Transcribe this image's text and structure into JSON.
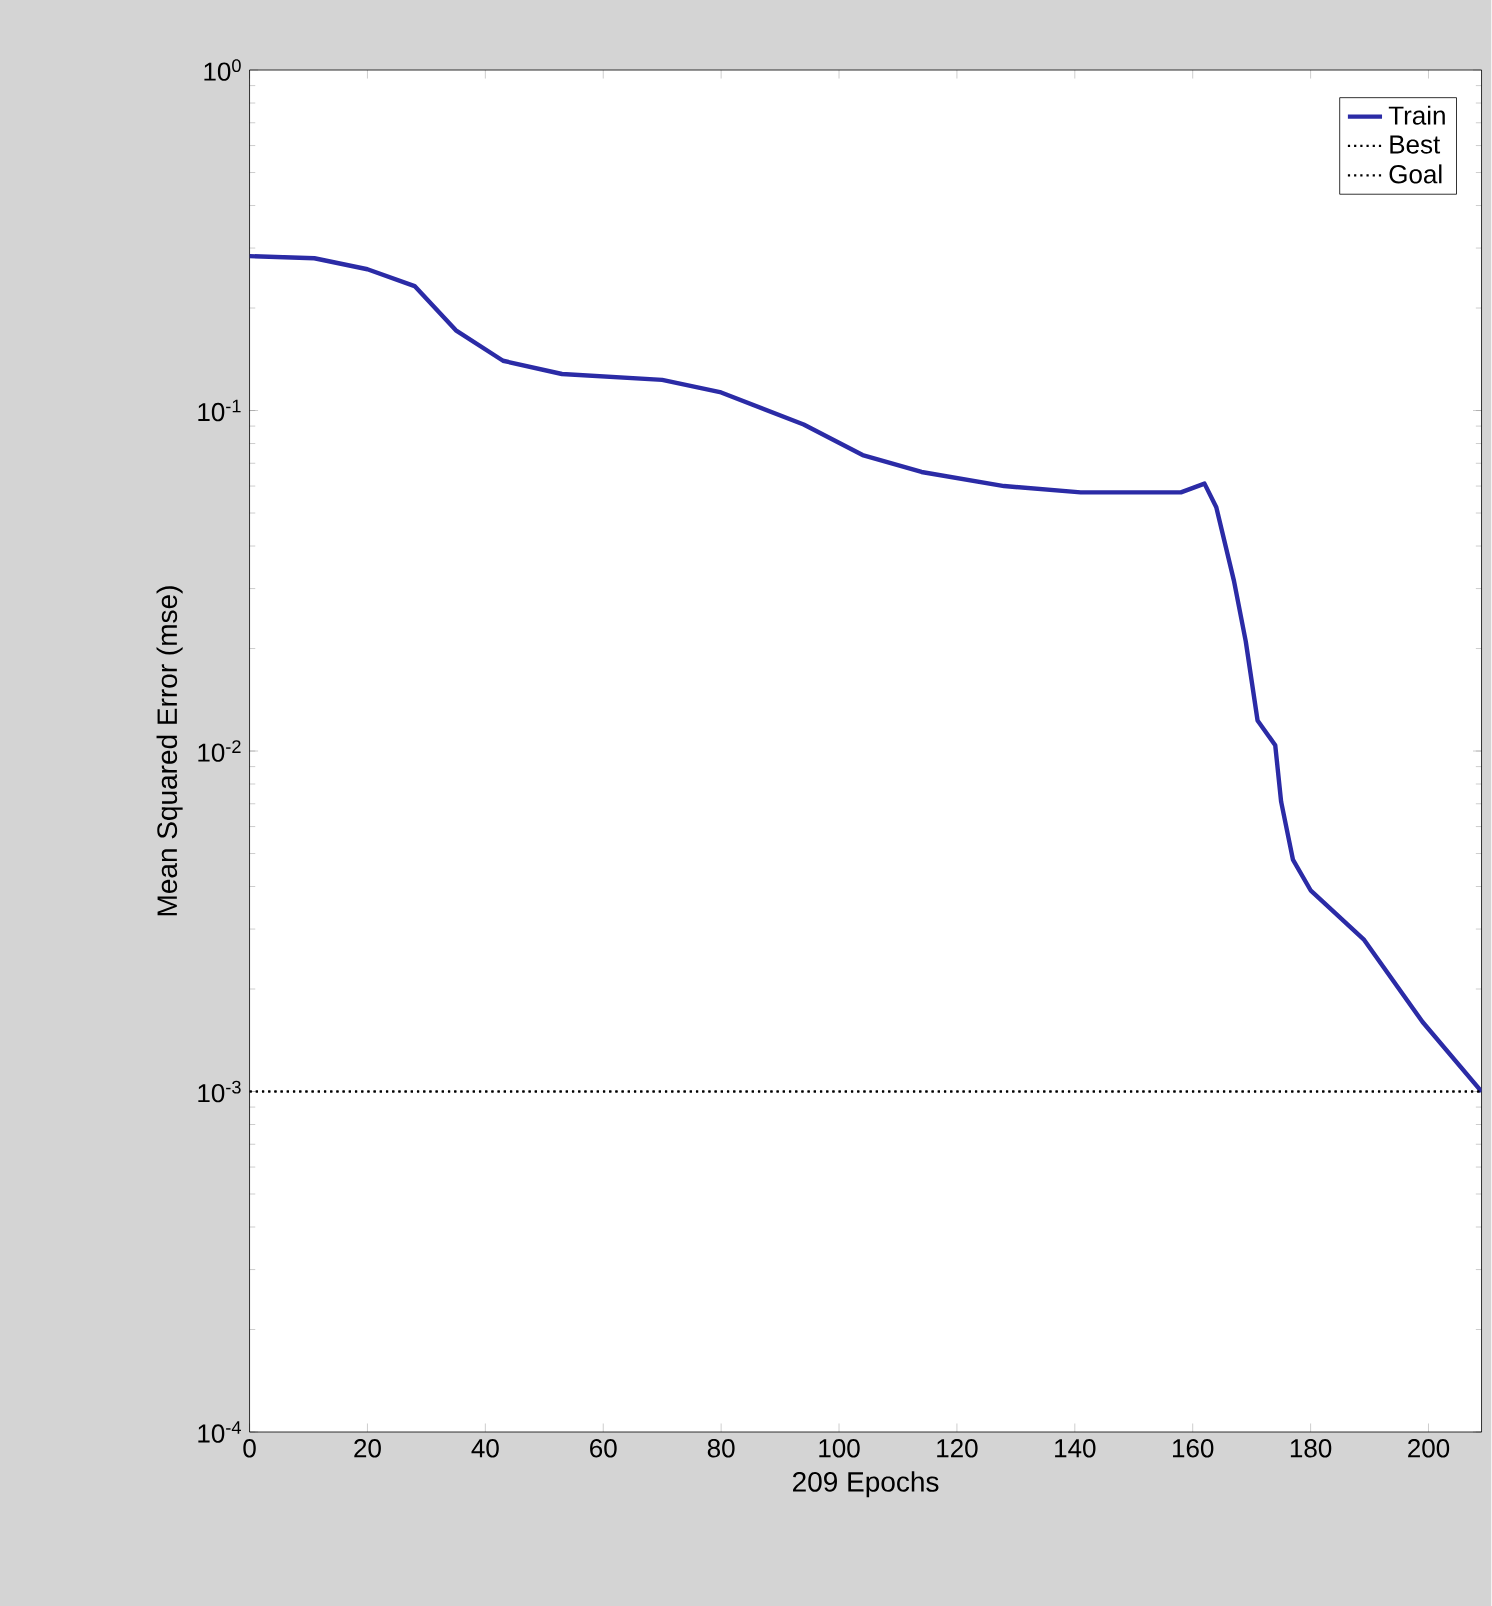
{
  "chart_data": {
    "type": "line",
    "xlabel": "209 Epochs",
    "ylabel": "Mean Squared Error  (mse)",
    "xlim": [
      0,
      209
    ],
    "ylim": [
      0.0001,
      1
    ],
    "log": "y",
    "legend": "top right",
    "grid": false,
    "xticks": [
      0,
      20,
      40,
      60,
      80,
      100,
      120,
      140,
      160,
      180,
      200
    ],
    "yticks": [
      {
        "value": 0.0001,
        "label": "10$^{-4}$"
      },
      {
        "value": 0.001,
        "label": "10$^{-3}$"
      },
      {
        "value": 0.01,
        "label": "10$^{-2}$"
      },
      {
        "value": 0.1,
        "label": "10$^{-1}$"
      },
      {
        "value": 1,
        "label": "10$^{0}$"
      }
    ],
    "series": [
      {
        "name": "Train",
        "color": "#2b2ba6",
        "line_style": "solid",
        "x": [
          0,
          11,
          20,
          28,
          35,
          43,
          53,
          70,
          80,
          94,
          104,
          114,
          128,
          141,
          158,
          162,
          164,
          167,
          169,
          171,
          174,
          175,
          177,
          180,
          189,
          199,
          209
        ],
        "values": [
          0.284,
          0.28,
          0.26,
          0.232,
          0.172,
          0.14,
          0.128,
          0.123,
          0.113,
          0.091,
          0.074,
          0.066,
          0.06,
          0.0575,
          0.0575,
          0.061,
          0.052,
          0.0316,
          0.021,
          0.0123,
          0.0104,
          0.0071,
          0.0048,
          0.0039,
          0.0028,
          0.0016,
          0.001
        ]
      },
      {
        "name": "Best",
        "color": "#000000",
        "line_style": "dotted",
        "x": [
          0,
          209
        ],
        "values": [
          0.001,
          0.001
        ]
      },
      {
        "name": "Goal",
        "color": "#000000",
        "line_style": "dotted",
        "x": [
          0,
          209
        ],
        "values": [
          0.001,
          0.001
        ]
      }
    ]
  }
}
